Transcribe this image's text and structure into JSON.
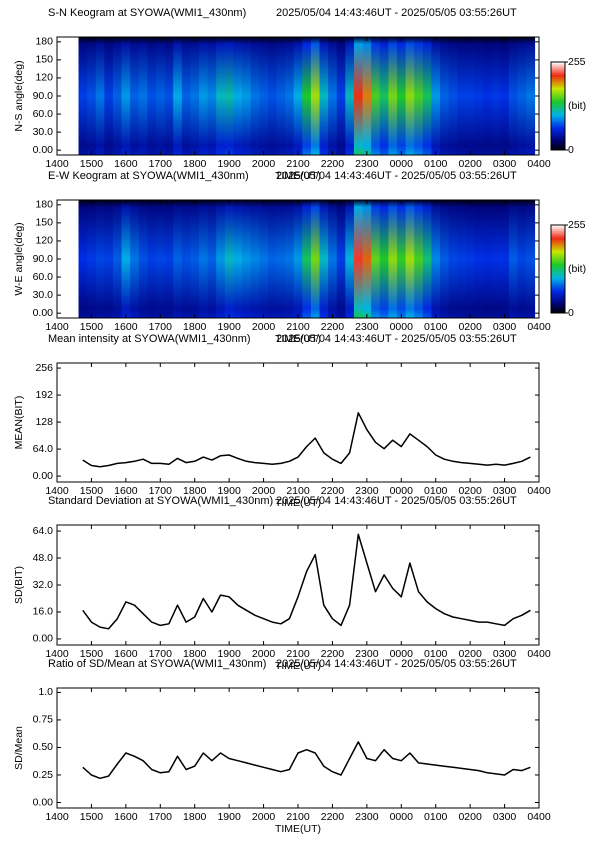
{
  "chart_data": [
    {
      "type": "heatmap",
      "title": "S-N Keogram at SYOWA(WMI1_430nm)",
      "time_range": "2025/05/04 14:43:46UT - 2025/05/05 03:55:26UT",
      "x_label": "TIME(UT)",
      "y_label": "N-S angle(deg)",
      "xlim": [
        14,
        28
      ],
      "xticks": [
        {
          "value": 14,
          "label": "1400"
        },
        {
          "value": 15,
          "label": "1500"
        },
        {
          "value": 16,
          "label": "1600"
        },
        {
          "value": 17,
          "label": "1700"
        },
        {
          "value": 18,
          "label": "1800"
        },
        {
          "value": 19,
          "label": "1900"
        },
        {
          "value": 20,
          "label": "2000"
        },
        {
          "value": 21,
          "label": "2100"
        },
        {
          "value": 22,
          "label": "2200"
        },
        {
          "value": 23,
          "label": "2300"
        },
        {
          "value": 24,
          "label": "0000"
        },
        {
          "value": 25,
          "label": "0100"
        },
        {
          "value": 26,
          "label": "0200"
        },
        {
          "value": 27,
          "label": "0300"
        },
        {
          "value": 28,
          "label": "0400"
        }
      ],
      "ylim": [
        -8,
        188
      ],
      "yticks": [
        {
          "value": 0,
          "label": "0.00"
        },
        {
          "value": 30,
          "label": "30.0"
        },
        {
          "value": 60,
          "label": "60.0"
        },
        {
          "value": 90,
          "label": "90.0"
        },
        120,
        150,
        180
      ],
      "clim": [
        0,
        255
      ],
      "cticks": [
        0,
        255
      ],
      "colorbar_label": "(bit)",
      "x": [
        14.75,
        15,
        15.25,
        15.5,
        15.75,
        16,
        16.25,
        16.5,
        16.75,
        17,
        17.25,
        17.5,
        17.75,
        18,
        18.25,
        18.5,
        18.75,
        19,
        19.25,
        19.5,
        19.75,
        20,
        20.25,
        20.5,
        20.75,
        21,
        21.25,
        21.5,
        21.75,
        22,
        22.25,
        22.5,
        22.75,
        23,
        23.25,
        23.5,
        23.75,
        24,
        24.25,
        24.5,
        24.75,
        25,
        25.25,
        25.5,
        25.75,
        26,
        26.25,
        26.5,
        26.75,
        27,
        27.25,
        27.5,
        27.75
      ],
      "values": [
        70,
        75,
        85,
        70,
        80,
        95,
        80,
        85,
        75,
        80,
        75,
        100,
        80,
        85,
        95,
        90,
        110,
        115,
        100,
        95,
        85,
        80,
        75,
        80,
        85,
        100,
        140,
        170,
        110,
        85,
        70,
        110,
        215,
        200,
        150,
        130,
        160,
        140,
        165,
        150,
        130,
        95,
        80,
        75,
        70,
        70,
        68,
        66,
        68,
        66,
        75,
        80,
        85
      ]
    },
    {
      "type": "heatmap",
      "title": "E-W Keogram at SYOWA(WMI1_430nm)",
      "time_range": "2025/05/04 14:43:46UT - 2025/05/05 03:55:26UT",
      "x_label": "TIME(UT)",
      "y_label": "W-E angle(deg)",
      "xlim": [
        14,
        28
      ],
      "xticks": [
        {
          "value": 14,
          "label": "1400"
        },
        {
          "value": 15,
          "label": "1500"
        },
        {
          "value": 16,
          "label": "1600"
        },
        {
          "value": 17,
          "label": "1700"
        },
        {
          "value": 18,
          "label": "1800"
        },
        {
          "value": 19,
          "label": "1900"
        },
        {
          "value": 20,
          "label": "2000"
        },
        {
          "value": 21,
          "label": "2100"
        },
        {
          "value": 22,
          "label": "2200"
        },
        {
          "value": 23,
          "label": "2300"
        },
        {
          "value": 24,
          "label": "0000"
        },
        {
          "value": 25,
          "label": "0100"
        },
        {
          "value": 26,
          "label": "0200"
        },
        {
          "value": 27,
          "label": "0300"
        },
        {
          "value": 28,
          "label": "0400"
        }
      ],
      "ylim": [
        -8,
        188
      ],
      "yticks": [
        {
          "value": 0,
          "label": "0.00"
        },
        {
          "value": 30,
          "label": "30.0"
        },
        {
          "value": 60,
          "label": "60.0"
        },
        {
          "value": 90,
          "label": "90.0"
        },
        120,
        150,
        180
      ],
      "clim": [
        0,
        255
      ],
      "cticks": [
        0,
        255
      ],
      "colorbar_label": "(bit)",
      "x": [
        14.75,
        15,
        15.25,
        15.5,
        15.75,
        16,
        16.25,
        16.5,
        16.75,
        17,
        17.25,
        17.5,
        17.75,
        18,
        18.25,
        18.5,
        18.75,
        19,
        19.25,
        19.5,
        19.75,
        20,
        20.25,
        20.5,
        20.75,
        21,
        21.25,
        21.5,
        21.75,
        22,
        22.25,
        22.5,
        22.75,
        23,
        23.25,
        23.5,
        23.75,
        24,
        24.25,
        24.5,
        24.75,
        25,
        25.25,
        25.5,
        25.75,
        26,
        26.25,
        26.5,
        26.75,
        27,
        27.25,
        27.5,
        27.75
      ],
      "values": [
        65,
        68,
        72,
        70,
        78,
        100,
        85,
        75,
        70,
        72,
        70,
        80,
        75,
        78,
        85,
        80,
        95,
        110,
        100,
        95,
        90,
        85,
        80,
        82,
        85,
        95,
        130,
        160,
        110,
        85,
        70,
        105,
        220,
        205,
        155,
        140,
        165,
        145,
        170,
        150,
        125,
        90,
        78,
        72,
        70,
        68,
        66,
        65,
        66,
        66,
        78,
        72,
        75
      ]
    },
    {
      "type": "line",
      "title": "Mean intensity at SYOWA(WMI1_430nm)",
      "time_range": "2025/05/04 14:43:46UT - 2025/05/05 03:55:26UT",
      "x_label": "TIME(UT)",
      "y_label": "MEAN(BIT)",
      "color": "#000000",
      "xlim": [
        14,
        28
      ],
      "xticks": [
        {
          "value": 14,
          "label": "1400"
        },
        {
          "value": 15,
          "label": "1500"
        },
        {
          "value": 16,
          "label": "1600"
        },
        {
          "value": 17,
          "label": "1700"
        },
        {
          "value": 18,
          "label": "1800"
        },
        {
          "value": 19,
          "label": "1900"
        },
        {
          "value": 20,
          "label": "2000"
        },
        {
          "value": 21,
          "label": "2100"
        },
        {
          "value": 22,
          "label": "2200"
        },
        {
          "value": 23,
          "label": "2300"
        },
        {
          "value": 24,
          "label": "0000"
        },
        {
          "value": 25,
          "label": "0100"
        },
        {
          "value": 26,
          "label": "0200"
        },
        {
          "value": 27,
          "label": "0300"
        },
        {
          "value": 28,
          "label": "0400"
        }
      ],
      "ylim": [
        -14,
        268
      ],
      "yticks": [
        {
          "value": 0,
          "label": "0.00"
        },
        {
          "value": 64,
          "label": "64.0"
        },
        128,
        192,
        256
      ],
      "x": [
        14.75,
        15,
        15.25,
        15.5,
        15.75,
        16,
        16.25,
        16.5,
        16.75,
        17,
        17.25,
        17.5,
        17.75,
        18,
        18.25,
        18.5,
        18.75,
        19,
        19.25,
        19.5,
        19.75,
        20,
        20.25,
        20.5,
        20.75,
        21,
        21.25,
        21.5,
        21.75,
        22,
        22.25,
        22.5,
        22.75,
        23,
        23.25,
        23.5,
        23.75,
        24,
        24.25,
        24.5,
        24.75,
        25,
        25.25,
        25.5,
        25.75,
        26,
        26.25,
        26.5,
        26.75,
        27,
        27.25,
        27.5,
        27.75
      ],
      "values": [
        38,
        25,
        22,
        25,
        30,
        32,
        35,
        40,
        30,
        30,
        28,
        42,
        32,
        35,
        45,
        38,
        48,
        50,
        42,
        35,
        32,
        30,
        28,
        30,
        35,
        45,
        70,
        90,
        55,
        40,
        30,
        55,
        150,
        110,
        80,
        65,
        85,
        70,
        100,
        85,
        70,
        50,
        40,
        35,
        32,
        30,
        28,
        26,
        28,
        26,
        30,
        35,
        45
      ]
    },
    {
      "type": "line",
      "title": "Standard Deviation at SYOWA(WMI1_430nm)",
      "time_range": "2025/05/04 14:43:46UT - 2025/05/05 03:55:26UT",
      "x_label": "TIME(UT)",
      "y_label": "SD(BIT)",
      "color": "#000000",
      "xlim": [
        14,
        28
      ],
      "xticks": [
        {
          "value": 14,
          "label": "1400"
        },
        {
          "value": 15,
          "label": "1500"
        },
        {
          "value": 16,
          "label": "1600"
        },
        {
          "value": 17,
          "label": "1700"
        },
        {
          "value": 18,
          "label": "1800"
        },
        {
          "value": 19,
          "label": "1900"
        },
        {
          "value": 20,
          "label": "2000"
        },
        {
          "value": 21,
          "label": "2100"
        },
        {
          "value": 22,
          "label": "2200"
        },
        {
          "value": 23,
          "label": "2300"
        },
        {
          "value": 24,
          "label": "0000"
        },
        {
          "value": 25,
          "label": "0100"
        },
        {
          "value": 26,
          "label": "0200"
        },
        {
          "value": 27,
          "label": "0300"
        },
        {
          "value": 28,
          "label": "0400"
        }
      ],
      "ylim": [
        -3.6,
        67.6
      ],
      "yticks": [
        {
          "value": 0,
          "label": "0.00"
        },
        {
          "value": 16,
          "label": "16.0"
        },
        {
          "value": 32,
          "label": "32.0"
        },
        {
          "value": 48,
          "label": "48.0"
        },
        {
          "value": 64,
          "label": "64.0"
        }
      ],
      "x": [
        14.75,
        15,
        15.25,
        15.5,
        15.75,
        16,
        16.25,
        16.5,
        16.75,
        17,
        17.25,
        17.5,
        17.75,
        18,
        18.25,
        18.5,
        18.75,
        19,
        19.25,
        19.5,
        19.75,
        20,
        20.25,
        20.5,
        20.75,
        21,
        21.25,
        21.5,
        21.75,
        22,
        22.25,
        22.5,
        22.75,
        23,
        23.25,
        23.5,
        23.75,
        24,
        24.25,
        24.5,
        24.75,
        25,
        25.25,
        25.5,
        25.75,
        26,
        26.25,
        26.5,
        26.75,
        27,
        27.25,
        27.5,
        27.75
      ],
      "values": [
        17,
        10,
        7,
        6,
        12,
        22,
        20,
        15,
        10,
        8,
        9,
        20,
        10,
        13,
        24,
        16,
        26,
        25,
        20,
        17,
        14,
        12,
        10,
        9,
        12,
        25,
        40,
        50,
        20,
        12,
        8,
        20,
        62,
        45,
        28,
        38,
        30,
        25,
        45,
        28,
        22,
        18,
        15,
        13,
        12,
        11,
        10,
        10,
        9,
        8,
        12,
        14,
        17
      ]
    },
    {
      "type": "line",
      "title": "Ratio of SD/Mean at SYOWA(WMI1_430nm)",
      "time_range": "2025/05/04 14:43:46UT - 2025/05/05 03:55:26UT",
      "x_label": "TIME(UT)",
      "y_label": "SD/Mean",
      "color": "#000000",
      "xlim": [
        14,
        28
      ],
      "xticks": [
        {
          "value": 14,
          "label": "1400"
        },
        {
          "value": 15,
          "label": "1500"
        },
        {
          "value": 16,
          "label": "1600"
        },
        {
          "value": 17,
          "label": "1700"
        },
        {
          "value": 18,
          "label": "1800"
        },
        {
          "value": 19,
          "label": "1900"
        },
        {
          "value": 20,
          "label": "2000"
        },
        {
          "value": 21,
          "label": "2100"
        },
        {
          "value": 22,
          "label": "2200"
        },
        {
          "value": 23,
          "label": "2300"
        },
        {
          "value": 24,
          "label": "0000"
        },
        {
          "value": 25,
          "label": "0100"
        },
        {
          "value": 26,
          "label": "0200"
        },
        {
          "value": 27,
          "label": "0300"
        },
        {
          "value": 28,
          "label": "0400"
        }
      ],
      "ylim": [
        -0.05,
        1.04
      ],
      "yticks": [
        {
          "value": 0,
          "label": "0.00"
        },
        0.25,
        {
          "value": 0.5,
          "label": "0.50"
        },
        0.75,
        {
          "value": 1,
          "label": "1.0"
        }
      ],
      "x": [
        14.75,
        15,
        15.25,
        15.5,
        15.75,
        16,
        16.25,
        16.5,
        16.75,
        17,
        17.25,
        17.5,
        17.75,
        18,
        18.25,
        18.5,
        18.75,
        19,
        19.25,
        19.5,
        19.75,
        20,
        20.25,
        20.5,
        20.75,
        21,
        21.25,
        21.5,
        21.75,
        22,
        22.25,
        22.5,
        22.75,
        23,
        23.25,
        23.5,
        23.75,
        24,
        24.25,
        24.5,
        24.75,
        25,
        25.25,
        25.5,
        25.75,
        26,
        26.25,
        26.5,
        26.75,
        27,
        27.25,
        27.5,
        27.75
      ],
      "values": [
        0.32,
        0.25,
        0.22,
        0.24,
        0.35,
        0.45,
        0.42,
        0.38,
        0.3,
        0.27,
        0.28,
        0.42,
        0.3,
        0.33,
        0.45,
        0.38,
        0.45,
        0.4,
        0.38,
        0.36,
        0.34,
        0.32,
        0.3,
        0.28,
        0.3,
        0.45,
        0.48,
        0.45,
        0.33,
        0.28,
        0.25,
        0.4,
        0.55,
        0.4,
        0.38,
        0.48,
        0.4,
        0.38,
        0.45,
        0.36,
        0.35,
        0.34,
        0.33,
        0.32,
        0.31,
        0.3,
        0.29,
        0.27,
        0.26,
        0.25,
        0.3,
        0.29,
        0.32
      ]
    }
  ]
}
